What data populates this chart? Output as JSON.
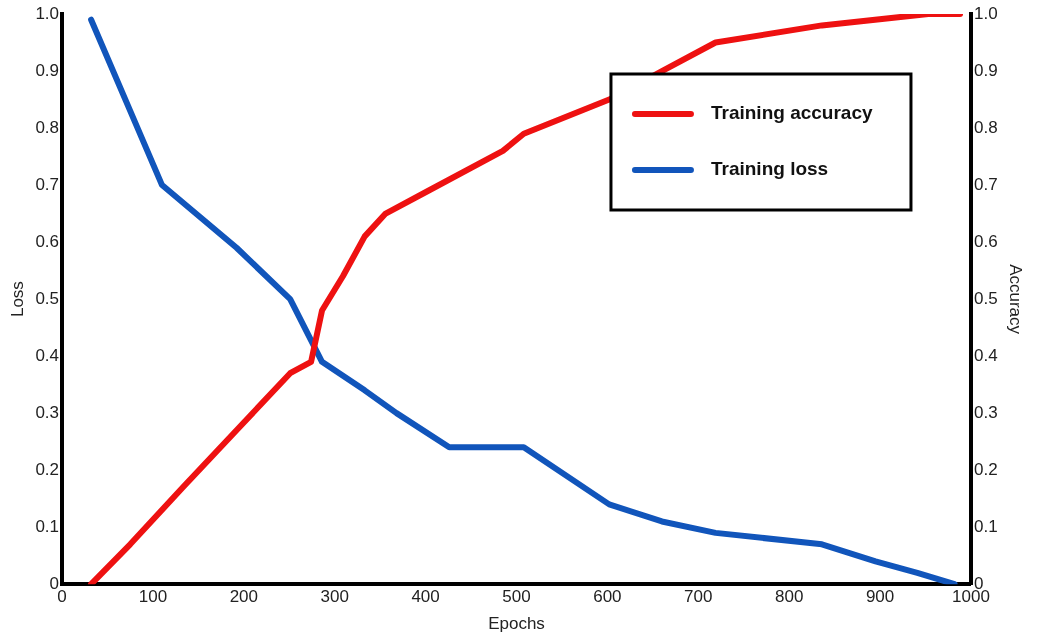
{
  "chart_data": {
    "type": "line",
    "xlabel": "Epochs",
    "ylabel": "Loss",
    "y2label": "Accuracy",
    "xlim": [
      0,
      1000
    ],
    "xticks": [
      0,
      100,
      200,
      300,
      400,
      500,
      600,
      700,
      800,
      900,
      1000
    ],
    "ylim": [
      0,
      1
    ],
    "yticks": [
      0,
      0.1,
      0.2,
      0.3,
      0.4,
      0.5,
      0.6,
      0.7,
      0.8,
      0.9,
      {
        "value": 1,
        "label": "1.0"
      }
    ],
    "y2lim": [
      0,
      1
    ],
    "y2ticks": [
      0,
      0.1,
      0.2,
      0.3,
      0.4,
      0.5,
      0.6,
      0.7,
      0.8,
      0.9,
      {
        "value": 1,
        "label": "1.0"
      }
    ],
    "grid": false,
    "legend": "top right",
    "marker": "none",
    "line_style": "solid",
    "series": [
      {
        "name": "Training accuracy",
        "color": "#ee1111",
        "axis": "y2",
        "x": [
          32,
          75,
          133,
          192,
          251,
          274,
          286,
          309,
          333,
          356,
          403,
          485,
          508,
          602,
          660,
          719,
          836,
          953,
          988
        ],
        "values": [
          0,
          0.07,
          0.17,
          0.27,
          0.37,
          0.39,
          0.48,
          0.54,
          0.61,
          0.65,
          0.69,
          0.76,
          0.79,
          0.85,
          0.9,
          0.95,
          0.98,
          1,
          1
        ]
      },
      {
        "name": "Training loss",
        "color": "#1155bb",
        "x": [
          32,
          75,
          110,
          192,
          251,
          286,
          333,
          368,
          426,
          508,
          602,
          660,
          719,
          836,
          895,
          941,
          982
        ],
        "values": [
          0.99,
          0.83,
          0.7,
          0.59,
          0.5,
          0.39,
          0.34,
          0.3,
          0.24,
          0.24,
          0.14,
          0.11,
          0.09,
          0.07,
          0.04,
          0.02,
          0
        ]
      }
    ]
  }
}
